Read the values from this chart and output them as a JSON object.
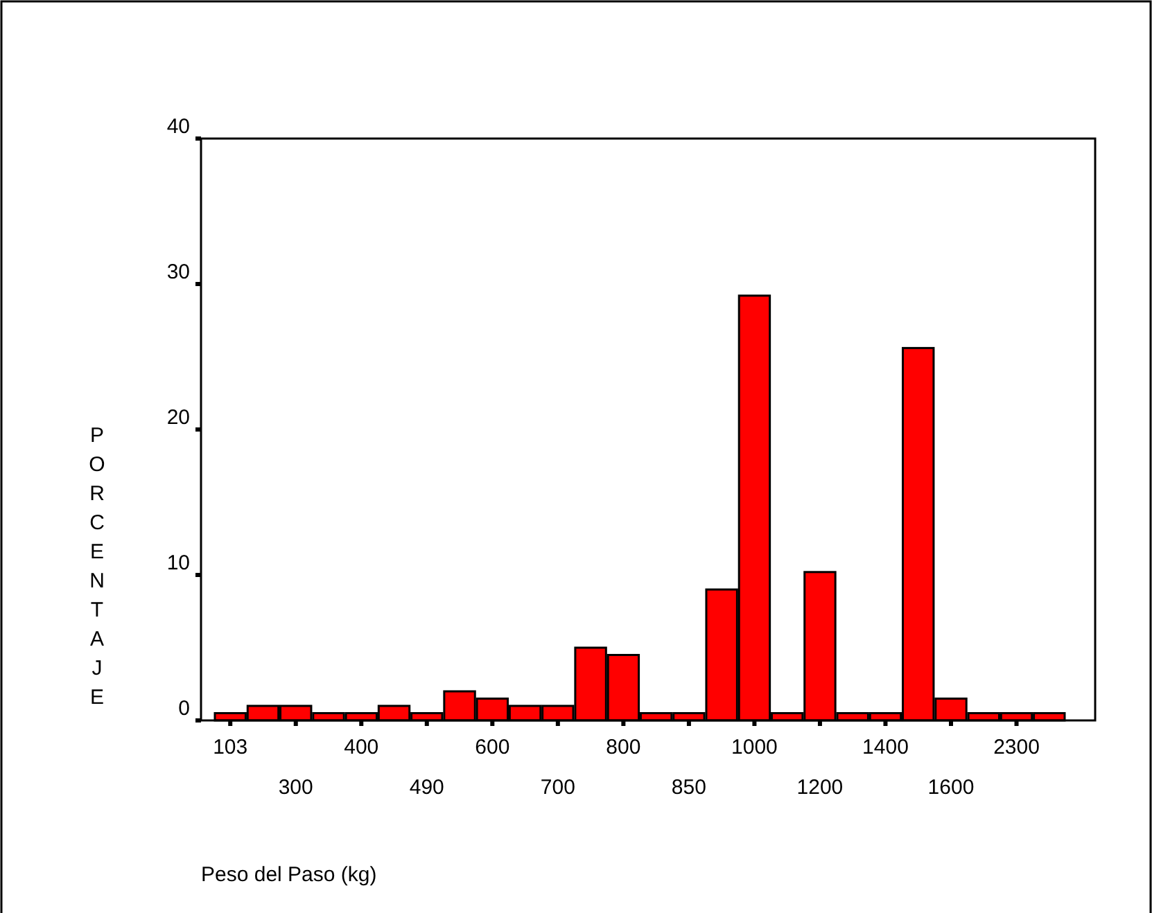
{
  "chart_data": {
    "type": "bar",
    "xlabel": "Peso del Paso (kg)",
    "ylabel": "PORCENTAJE",
    "categories": [
      "103",
      null,
      "300",
      null,
      "400",
      null,
      "490",
      null,
      "600",
      null,
      "700",
      null,
      "800",
      null,
      "850",
      null,
      "1000",
      null,
      "1200",
      null,
      "1400",
      null,
      "1600",
      null,
      "2300",
      null
    ],
    "values": [
      0.5,
      1,
      1,
      0.5,
      0.5,
      1,
      0.5,
      2,
      1.5,
      1,
      1,
      5,
      4.5,
      0.5,
      0.5,
      9,
      29.2,
      0.5,
      10.2,
      0.5,
      0.5,
      25.6,
      1.5,
      0.5,
      0.5,
      0.5
    ],
    "color": "#ff0000",
    "ylim": [
      0,
      40
    ],
    "yticks": [
      0,
      10,
      20,
      30,
      40
    ],
    "grid": false
  }
}
